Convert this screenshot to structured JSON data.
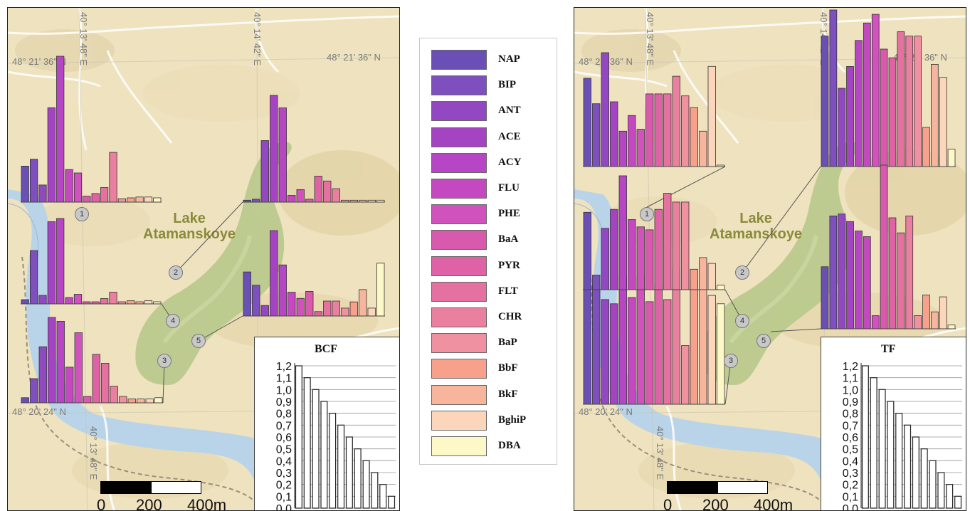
{
  "compounds": [
    {
      "name": "NAP",
      "color": "#6a4fb5"
    },
    {
      "name": "BIP",
      "color": "#7d50bd"
    },
    {
      "name": "ANT",
      "color": "#9248c0"
    },
    {
      "name": "ACE",
      "color": "#a544c2"
    },
    {
      "name": "ACY",
      "color": "#b746c6"
    },
    {
      "name": "FLU",
      "color": "#c449c0"
    },
    {
      "name": "PHE",
      "color": "#d052bd"
    },
    {
      "name": "BaA",
      "color": "#d75aad"
    },
    {
      "name": "PYR",
      "color": "#e062a6"
    },
    {
      "name": "FLT",
      "color": "#e571a0"
    },
    {
      "name": "CHR",
      "color": "#e9809f"
    },
    {
      "name": "BaP",
      "color": "#f091a2"
    },
    {
      "name": "BbF",
      "color": "#f7a08b"
    },
    {
      "name": "BkF",
      "color": "#f8b59d"
    },
    {
      "name": "BghiP",
      "color": "#fbd6ba"
    },
    {
      "name": "DBA",
      "color": "#fdf8c8"
    }
  ],
  "map": {
    "lake_label_line1": "Lake",
    "lake_label_line2": "Atamanskoye",
    "coord_lat_north": "48° 21' 36\" N",
    "coord_lat_south": "48° 20' 24\" N",
    "coord_lon_west": "40° 13' 48\" E",
    "coord_lon_east": "40° 14' 42\" E",
    "scale_labels": [
      "0",
      "200",
      "400m"
    ]
  },
  "chart_data": [
    {
      "type": "bar",
      "title": "BCF",
      "panel": "left",
      "categories": [
        "NAP",
        "BIP",
        "ANT",
        "ACE",
        "ACY",
        "FLU",
        "PHE",
        "BaA",
        "PYR",
        "FLT",
        "CHR",
        "BaP",
        "BbF",
        "BkF",
        "BghiP",
        "DBA"
      ],
      "sites": [
        {
          "site": "1",
          "values": [
            0.42,
            0.5,
            0.2,
            1.1,
            1.7,
            0.38,
            0.34,
            0.07,
            0.1,
            0.17,
            0.58,
            0.04,
            0.05,
            0.06,
            0.06,
            0.05
          ]
        },
        {
          "site": "2",
          "values": [
            0.02,
            0.03,
            0.64,
            1.11,
            0.98,
            0.07,
            0.13,
            0.03,
            0.27,
            0.22,
            0.14,
            0.02,
            0.02,
            0.02,
            0.02,
            0.02
          ]
        },
        {
          "site": "3",
          "values": [
            0.04,
            0.19,
            0.44,
            0.67,
            0.64,
            0.28,
            0.55,
            0.05,
            0.38,
            0.31,
            0.13,
            0.05,
            0.03,
            0.03,
            0.03,
            0.04
          ]
        },
        {
          "site": "4",
          "values": [
            0.04,
            0.5,
            0.08,
            0.77,
            0.8,
            0.06,
            0.09,
            0.02,
            0.02,
            0.05,
            0.11,
            0.02,
            0.03,
            0.02,
            0.03,
            0.02
          ]
        },
        {
          "site": "5",
          "values": [
            0.5,
            0.35,
            0.12,
            0.97,
            0.58,
            0.27,
            0.2,
            0.28,
            0.05,
            0.17,
            0.17,
            0.09,
            0.16,
            0.3,
            0.09,
            0.6
          ]
        }
      ],
      "legend_bars": [
        1.2,
        1.1,
        1.0,
        0.9,
        0.8,
        0.7,
        0.6,
        0.5,
        0.4,
        0.3,
        0.2,
        0.1
      ],
      "y_ticks": [
        "1,2",
        "1,1",
        "1,0",
        "0,9",
        "0,8",
        "0,7",
        "0,6",
        "0,5",
        "0,4",
        "0,3",
        "0,2",
        "0,1",
        "0,0"
      ],
      "ylim": [
        0,
        1.2
      ]
    },
    {
      "type": "bar",
      "title": "TF",
      "panel": "right",
      "categories": [
        "NAP",
        "BIP",
        "ANT",
        "ACE",
        "ACY",
        "FLU",
        "PHE",
        "BaA",
        "PYR",
        "FLT",
        "CHR",
        "BaP",
        "BbF",
        "BkF",
        "BghiP",
        "DBA"
      ],
      "sites": [
        {
          "site": "1",
          "values": [
            0.45,
            0.32,
            0.58,
            0.33,
            0.18,
            0.26,
            0.19,
            0.37,
            0.37,
            0.37,
            0.46,
            0.36,
            0.3,
            0.18,
            0.51,
            0.0
          ]
        },
        {
          "site": "2",
          "values": [
            0.6,
            0.72,
            0.36,
            0.46,
            0.58,
            0.66,
            0.7,
            0.54,
            0.5,
            0.62,
            0.6,
            0.6,
            0.18,
            0.47,
            0.41,
            0.08
          ]
        },
        {
          "site": "3",
          "values": [
            0.55,
            0.57,
            0.5,
            0.48,
            0.61,
            0.51,
            0.61,
            0.49,
            0.57,
            0.5,
            0.65,
            0.28,
            0.59,
            0.68,
            0.52,
            0.48
          ]
        },
        {
          "site": "4",
          "values": [
            0.53,
            0.1,
            0.42,
            0.55,
            0.78,
            0.48,
            0.43,
            0.41,
            0.55,
            0.66,
            0.6,
            0.6,
            0.14,
            0.22,
            0.18,
            0.03
          ]
        },
        {
          "site": "5",
          "values": [
            0.33,
            0.6,
            0.61,
            0.57,
            0.52,
            0.49,
            0.07,
            0.87,
            0.59,
            0.51,
            0.6,
            0.07,
            0.18,
            0.09,
            0.17,
            0.02
          ]
        }
      ],
      "legend_bars": [
        1.2,
        1.1,
        1.0,
        0.9,
        0.8,
        0.7,
        0.6,
        0.5,
        0.4,
        0.3,
        0.2,
        0.1
      ],
      "y_ticks": [
        "1,2",
        "1,1",
        "1,0",
        "0,9",
        "0,8",
        "0,7",
        "0,6",
        "0,5",
        "0,4",
        "0,3",
        "0,2",
        "0,1",
        "0,0"
      ],
      "ylim": [
        0,
        1.2
      ]
    }
  ]
}
